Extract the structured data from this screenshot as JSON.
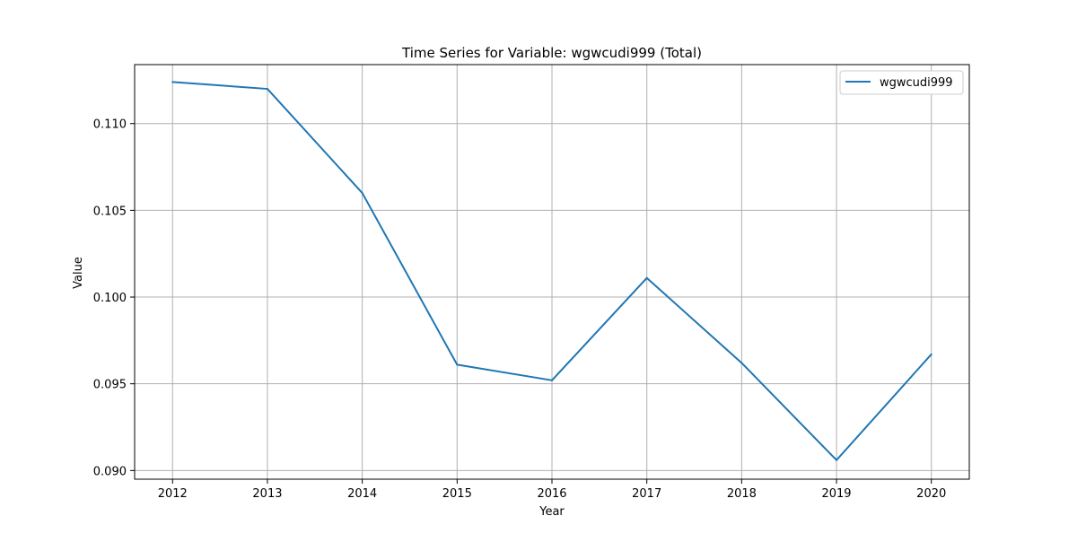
{
  "chart_data": {
    "type": "line",
    "title": "Time Series for Variable: wgwcudi999 (Total)",
    "xlabel": "Year",
    "ylabel": "Value",
    "x": [
      2012,
      2013,
      2014,
      2015,
      2016,
      2017,
      2018,
      2019,
      2020
    ],
    "x_ticks": [
      "2012",
      "2013",
      "2014",
      "2015",
      "2016",
      "2017",
      "2018",
      "2019",
      "2020"
    ],
    "y_ticks": [
      "0.090",
      "0.095",
      "0.100",
      "0.105",
      "0.110"
    ],
    "y_tick_values": [
      0.09,
      0.095,
      0.1,
      0.105,
      0.11
    ],
    "xlim": [
      2011.6,
      2020.4
    ],
    "ylim": [
      0.0895,
      0.1134
    ],
    "grid": true,
    "legend_position": "top-right",
    "series": [
      {
        "name": "wgwcudi999",
        "color": "#1f77b4",
        "values": [
          0.1124,
          0.112,
          0.106,
          0.0961,
          0.0952,
          0.1011,
          0.0962,
          0.0906,
          0.0967
        ]
      }
    ]
  }
}
